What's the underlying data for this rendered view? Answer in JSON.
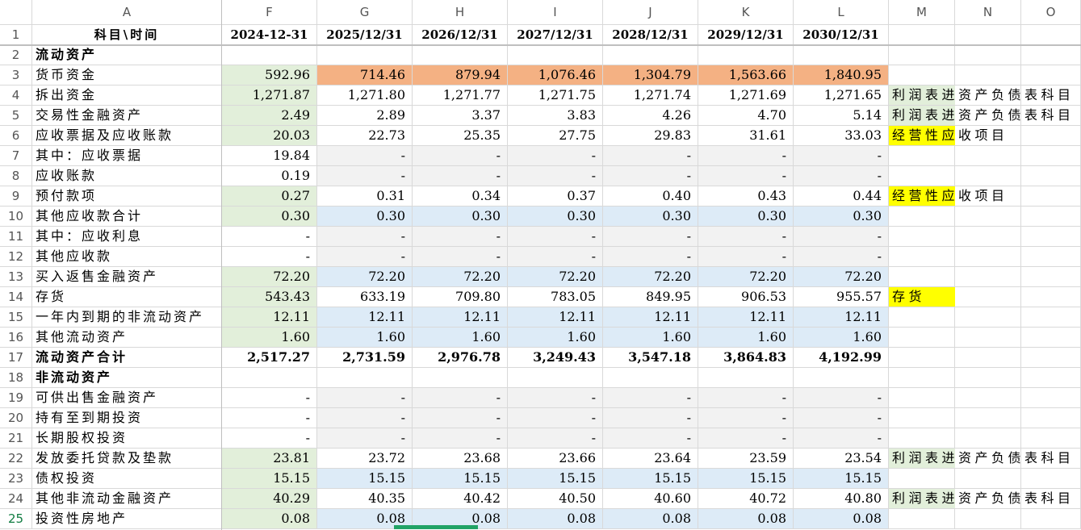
{
  "column_letters": [
    "A",
    "F",
    "G",
    "H",
    "I",
    "J",
    "K",
    "L",
    "M",
    "N",
    "O"
  ],
  "row_numbers": [
    1,
    2,
    3,
    4,
    5,
    6,
    7,
    8,
    9,
    10,
    11,
    12,
    13,
    14,
    15,
    16,
    17,
    18,
    19,
    20,
    21,
    22,
    23,
    24,
    25
  ],
  "header_row": {
    "labels": [
      "科目\\时间",
      "2024-12-31",
      "2025/12/31",
      "2026/12/31",
      "2027/12/31",
      "2028/12/31",
      "2029/12/31",
      "2030/12/31"
    ]
  },
  "rows": [
    {
      "label": "流动资产"
    },
    {
      "label": "货币资金",
      "values": [
        "592.96",
        "714.46",
        "879.94",
        "1,076.46",
        "1,304.79",
        "1,563.66",
        "1,840.95"
      ]
    },
    {
      "label": "拆出资金",
      "values": [
        "1,271.87",
        "1,271.80",
        "1,271.77",
        "1,271.75",
        "1,271.74",
        "1,271.69",
        "1,271.65"
      ],
      "note": "利润表进资产负债表科目"
    },
    {
      "label": "交易性金融资产",
      "values": [
        "2.49",
        "2.89",
        "3.37",
        "3.83",
        "4.26",
        "4.70",
        "5.14"
      ],
      "note": "利润表进资产负债表科目"
    },
    {
      "label": "应收票据及应收账款",
      "values": [
        "20.03",
        "22.73",
        "25.35",
        "27.75",
        "29.83",
        "31.61",
        "33.03"
      ],
      "note": "经营性应收项目"
    },
    {
      "label": "其中：应收票据",
      "values": [
        "19.84",
        "-",
        "-",
        "-",
        "-",
        "-",
        "-"
      ]
    },
    {
      "label": "应收账款",
      "values": [
        "0.19",
        "-",
        "-",
        "-",
        "-",
        "-",
        "-"
      ]
    },
    {
      "label": "预付款项",
      "values": [
        "0.27",
        "0.31",
        "0.34",
        "0.37",
        "0.40",
        "0.43",
        "0.44"
      ],
      "note": "经营性应收项目"
    },
    {
      "label": "其他应收款合计",
      "values": [
        "0.30",
        "0.30",
        "0.30",
        "0.30",
        "0.30",
        "0.30",
        "0.30"
      ]
    },
    {
      "label": "其中：应收利息",
      "values": [
        "-",
        "-",
        "-",
        "-",
        "-",
        "-",
        "-"
      ]
    },
    {
      "label": "其他应收款",
      "values": [
        "-",
        "-",
        "-",
        "-",
        "-",
        "-",
        "-"
      ]
    },
    {
      "label": "买入返售金融资产",
      "values": [
        "72.20",
        "72.20",
        "72.20",
        "72.20",
        "72.20",
        "72.20",
        "72.20"
      ]
    },
    {
      "label": "存货",
      "values": [
        "543.43",
        "633.19",
        "709.80",
        "783.05",
        "849.95",
        "906.53",
        "955.57"
      ],
      "note": "存货"
    },
    {
      "label": "一年内到期的非流动资产",
      "values": [
        "12.11",
        "12.11",
        "12.11",
        "12.11",
        "12.11",
        "12.11",
        "12.11"
      ]
    },
    {
      "label": "其他流动资产",
      "values": [
        "1.60",
        "1.60",
        "1.60",
        "1.60",
        "1.60",
        "1.60",
        "1.60"
      ]
    },
    {
      "label": "流动资产合计",
      "values": [
        "2,517.27",
        "2,731.59",
        "2,976.78",
        "3,249.43",
        "3,547.18",
        "3,864.83",
        "4,192.99"
      ]
    },
    {
      "label": "非流动资产"
    },
    {
      "label": "可供出售金融资产",
      "values": [
        "-",
        "-",
        "-",
        "-",
        "-",
        "-",
        "-"
      ]
    },
    {
      "label": "持有至到期投资",
      "values": [
        "-",
        "-",
        "-",
        "-",
        "-",
        "-",
        "-"
      ]
    },
    {
      "label": "长期股权投资",
      "values": [
        "-",
        "-",
        "-",
        "-",
        "-",
        "-",
        "-"
      ]
    },
    {
      "label": "发放委托贷款及垫款",
      "values": [
        "23.81",
        "23.72",
        "23.68",
        "23.66",
        "23.64",
        "23.59",
        "23.54"
      ],
      "note": "利润表进资产负债表科目"
    },
    {
      "label": "债权投资",
      "values": [
        "15.15",
        "15.15",
        "15.15",
        "15.15",
        "15.15",
        "15.15",
        "15.15"
      ]
    },
    {
      "label": "其他非流动金融资产",
      "values": [
        "40.29",
        "40.35",
        "40.42",
        "40.50",
        "40.60",
        "40.72",
        "40.80"
      ],
      "note": "利润表进资产负债表科目"
    },
    {
      "label": "投资性房地产",
      "values": [
        "0.08",
        "0.08",
        "0.08",
        "0.08",
        "0.08",
        "0.08",
        "0.08"
      ]
    }
  ]
}
